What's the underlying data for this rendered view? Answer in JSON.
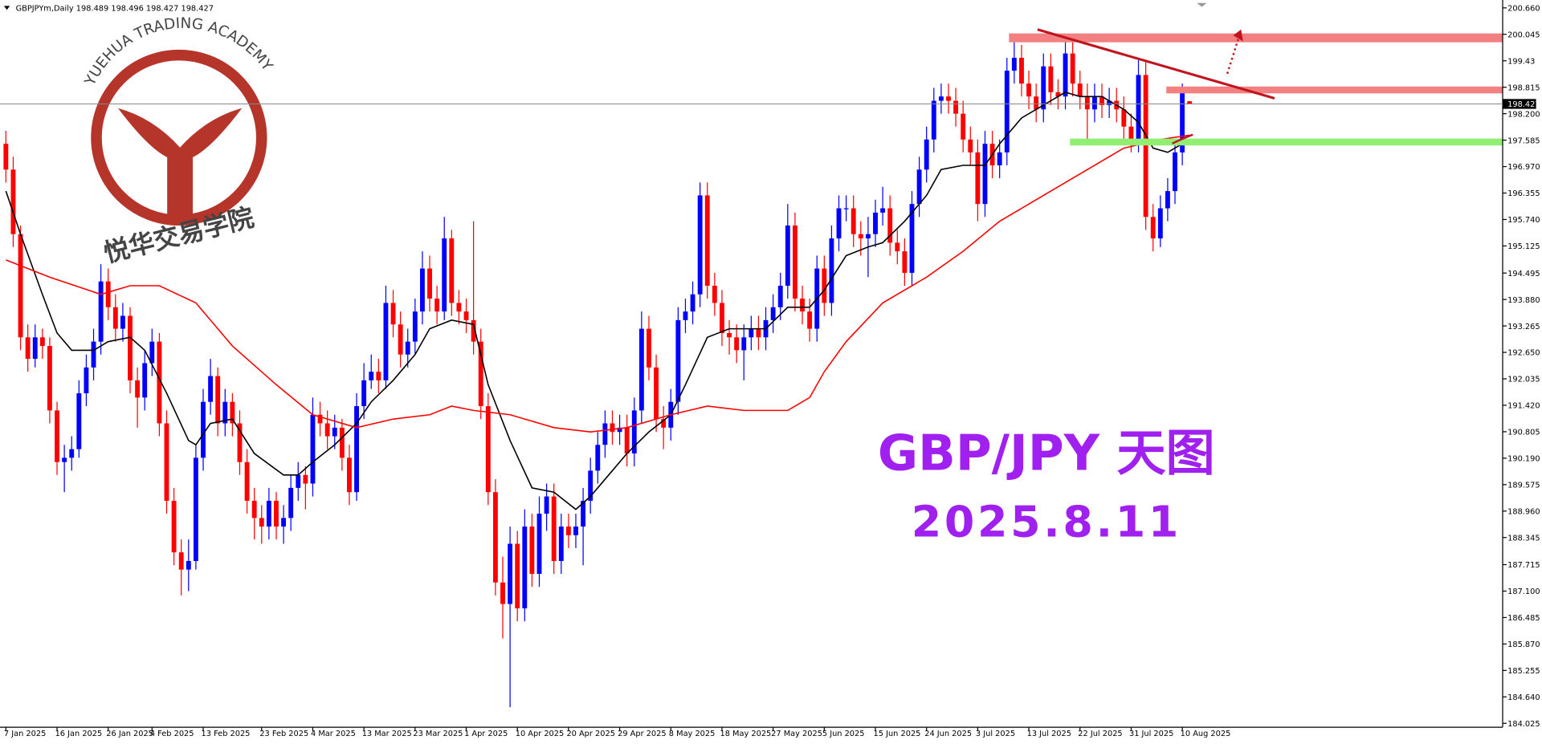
{
  "header": "GBPJPYm,Daily  198.489 198.496 198.427 198.427",
  "watermark": {
    "arc_text": "YUEHUA TRADING ACADEMY",
    "cn_text": "悦华交易学院"
  },
  "chart_data": {
    "type": "candlestick",
    "annotations": [
      "GBP/JPY 天图",
      "2025.8.11"
    ],
    "up_color": "#0000ff",
    "down_color": "#ff0000",
    "grid": false,
    "ylim": [
      184.025,
      200.66
    ],
    "yticks": [
      {
        "value": 200.66,
        "label": "200.660"
      },
      200.045,
      199.43,
      198.815,
      {
        "value": 198.2,
        "label": "198.200"
      },
      197.585,
      {
        "value": 196.97,
        "label": "196.970"
      },
      196.355,
      {
        "value": 195.74,
        "label": "195.740"
      },
      195.125,
      194.495,
      {
        "value": 193.88,
        "label": "193.880"
      },
      193.265,
      {
        "value": 192.65,
        "label": "192.650"
      },
      192.035,
      {
        "value": 191.42,
        "label": "191.420"
      },
      190.805,
      {
        "value": 190.19,
        "label": "190.190"
      },
      189.575,
      {
        "value": 188.96,
        "label": "188.960"
      },
      188.345,
      187.715,
      {
        "value": 187.1,
        "label": "187.100"
      },
      186.485,
      {
        "value": 185.87,
        "label": "185.870"
      },
      185.255,
      {
        "value": 184.64,
        "label": "184.640"
      },
      184.025
    ],
    "xticks": [
      {
        "value": 0,
        "label": "7 Jan 2025"
      },
      {
        "value": 7,
        "label": "16 Jan 2025"
      },
      {
        "value": 14,
        "label": "26 Jan 2025"
      },
      {
        "value": 20,
        "label": "4 Feb 2025"
      },
      {
        "value": 27,
        "label": "13 Feb 2025"
      },
      {
        "value": 35,
        "label": "23 Feb 2025"
      },
      {
        "value": 42,
        "label": "4 Mar 2025"
      },
      {
        "value": 49,
        "label": "13 Mar 2025"
      },
      {
        "value": 56,
        "label": "23 Mar 2025"
      },
      {
        "value": 63,
        "label": "1 Apr 2025"
      },
      {
        "value": 70,
        "label": "10 Apr 2025"
      },
      {
        "value": 77,
        "label": "20 Apr 2025"
      },
      {
        "value": 84,
        "label": "29 Apr 2025"
      },
      {
        "value": 91,
        "label": "8 May 2025"
      },
      {
        "value": 98,
        "label": "18 May 2025"
      },
      {
        "value": 105,
        "label": "27 May 2025"
      },
      {
        "value": 112,
        "label": "5 Jun 2025"
      },
      {
        "value": 119,
        "label": "15 Jun 2025"
      },
      {
        "value": 126,
        "label": "24 Jun 2025"
      },
      {
        "value": 133,
        "label": "3 Jul 2025"
      },
      {
        "value": 140,
        "label": "13 Jul 2025"
      },
      {
        "value": 147,
        "label": "22 Jul 2025"
      },
      {
        "value": 154,
        "label": "31 Jul 2025"
      },
      {
        "value": 161,
        "label": "10 Aug 2025"
      }
    ],
    "candles": [
      [
        197.5,
        197.8,
        196.6,
        196.9
      ],
      [
        196.9,
        197.2,
        195.1,
        195.4
      ],
      [
        195.4,
        195.6,
        192.7,
        193.0
      ],
      [
        193.0,
        193.3,
        192.2,
        192.5
      ],
      [
        192.5,
        193.3,
        192.3,
        193.0
      ],
      [
        193.0,
        193.2,
        192.5,
        192.8
      ],
      [
        192.8,
        193.0,
        191.0,
        191.3
      ],
      [
        191.3,
        191.5,
        189.8,
        190.1
      ],
      [
        190.1,
        190.5,
        189.4,
        190.2
      ],
      [
        190.2,
        190.7,
        189.9,
        190.4
      ],
      [
        190.4,
        192.0,
        190.2,
        191.7
      ],
      [
        191.7,
        192.6,
        191.4,
        192.3
      ],
      [
        192.3,
        193.2,
        192.0,
        192.9
      ],
      [
        192.9,
        194.7,
        192.6,
        194.3
      ],
      [
        194.3,
        194.6,
        193.4,
        193.7
      ],
      [
        193.7,
        194.0,
        192.9,
        193.2
      ],
      [
        193.2,
        193.8,
        192.9,
        193.5
      ],
      [
        193.5,
        193.7,
        191.7,
        192.0
      ],
      [
        192.0,
        192.3,
        190.9,
        191.6
      ],
      [
        191.6,
        192.7,
        191.3,
        192.4
      ],
      [
        192.4,
        193.2,
        192.1,
        192.9
      ],
      [
        192.9,
        193.1,
        190.7,
        191.0
      ],
      [
        191.0,
        191.3,
        188.9,
        189.2
      ],
      [
        189.2,
        189.5,
        187.7,
        188.0
      ],
      [
        188.0,
        188.3,
        187.0,
        187.6
      ],
      [
        187.6,
        188.3,
        187.1,
        187.8
      ],
      [
        187.8,
        190.5,
        187.6,
        190.2
      ],
      [
        190.2,
        191.8,
        189.9,
        191.5
      ],
      [
        191.5,
        192.5,
        191.2,
        192.1
      ],
      [
        192.1,
        192.3,
        190.7,
        191.0
      ],
      [
        191.0,
        191.8,
        190.7,
        191.5
      ],
      [
        191.5,
        191.7,
        190.7,
        191.0
      ],
      [
        191.0,
        191.3,
        189.8,
        190.1
      ],
      [
        190.1,
        190.4,
        188.9,
        189.2
      ],
      [
        189.2,
        189.5,
        188.3,
        188.8
      ],
      [
        188.8,
        189.1,
        188.2,
        188.6
      ],
      [
        188.6,
        189.5,
        188.3,
        189.2
      ],
      [
        189.2,
        189.4,
        188.3,
        188.6
      ],
      [
        188.6,
        189.1,
        188.2,
        188.8
      ],
      [
        188.8,
        189.8,
        188.5,
        189.5
      ],
      [
        189.5,
        190.1,
        189.2,
        189.8
      ],
      [
        189.8,
        190.0,
        189.0,
        189.6
      ],
      [
        189.6,
        191.6,
        189.3,
        191.2
      ],
      [
        191.2,
        191.5,
        190.7,
        191.0
      ],
      [
        191.0,
        191.3,
        190.4,
        190.7
      ],
      [
        190.7,
        191.2,
        190.4,
        190.9
      ],
      [
        190.9,
        191.1,
        189.9,
        190.2
      ],
      [
        190.2,
        190.5,
        189.1,
        189.4
      ],
      [
        189.4,
        191.7,
        189.2,
        191.4
      ],
      [
        191.4,
        192.4,
        191.1,
        192.0
      ],
      [
        192.0,
        192.6,
        191.8,
        192.2
      ],
      [
        192.2,
        192.5,
        191.7,
        192.0
      ],
      [
        192.0,
        194.2,
        191.8,
        193.8
      ],
      [
        193.8,
        194.1,
        193.0,
        193.3
      ],
      [
        193.3,
        193.6,
        192.3,
        192.6
      ],
      [
        192.6,
        193.2,
        192.3,
        192.9
      ],
      [
        192.9,
        193.9,
        192.6,
        193.6
      ],
      [
        193.6,
        195.0,
        193.3,
        194.6
      ],
      [
        194.6,
        194.9,
        193.6,
        193.9
      ],
      [
        193.9,
        194.2,
        193.3,
        193.6
      ],
      [
        193.6,
        195.8,
        193.4,
        195.3
      ],
      [
        195.3,
        195.5,
        193.5,
        193.8
      ],
      [
        193.8,
        194.1,
        193.3,
        193.6
      ],
      [
        193.6,
        193.9,
        193.1,
        193.4
      ],
      [
        193.4,
        195.7,
        192.6,
        192.9
      ],
      [
        192.9,
        193.2,
        191.1,
        191.4
      ],
      [
        191.4,
        191.7,
        189.1,
        189.4
      ],
      [
        189.4,
        189.7,
        187.0,
        187.3
      ],
      [
        187.3,
        187.9,
        186.0,
        186.8
      ],
      [
        186.8,
        188.6,
        184.4,
        188.2
      ],
      [
        188.2,
        188.5,
        186.4,
        186.7
      ],
      [
        186.7,
        189.0,
        186.4,
        188.6
      ],
      [
        188.6,
        188.9,
        187.2,
        187.5
      ],
      [
        187.5,
        189.3,
        187.2,
        188.9
      ],
      [
        188.9,
        189.6,
        188.5,
        189.3
      ],
      [
        189.3,
        189.6,
        187.5,
        187.8
      ],
      [
        187.8,
        188.9,
        187.5,
        188.6
      ],
      [
        188.6,
        188.9,
        188.1,
        188.4
      ],
      [
        188.4,
        188.9,
        188.1,
        188.6
      ],
      [
        188.6,
        189.5,
        187.7,
        189.2
      ],
      [
        189.2,
        190.2,
        188.9,
        189.9
      ],
      [
        189.9,
        190.8,
        189.6,
        190.5
      ],
      [
        190.5,
        191.3,
        190.2,
        191.0
      ],
      [
        191.0,
        191.3,
        190.5,
        190.8
      ],
      [
        190.8,
        191.2,
        190.5,
        190.9
      ],
      [
        190.9,
        191.2,
        190.0,
        190.3
      ],
      [
        190.3,
        191.6,
        190.0,
        191.3
      ],
      [
        191.3,
        193.6,
        191.0,
        193.2
      ],
      [
        193.2,
        193.5,
        192.0,
        192.3
      ],
      [
        192.3,
        192.6,
        190.8,
        191.1
      ],
      [
        191.1,
        191.4,
        190.4,
        190.9
      ],
      [
        190.9,
        191.8,
        190.6,
        191.5
      ],
      [
        191.5,
        193.7,
        191.2,
        193.4
      ],
      [
        193.4,
        193.9,
        193.1,
        193.6
      ],
      [
        193.6,
        194.3,
        193.3,
        194.0
      ],
      [
        194.0,
        196.6,
        193.7,
        196.3
      ],
      [
        196.3,
        196.6,
        193.9,
        194.2
      ],
      [
        194.2,
        194.5,
        193.5,
        193.8
      ],
      [
        193.8,
        194.1,
        192.8,
        193.1
      ],
      [
        193.1,
        193.4,
        192.6,
        193.0
      ],
      [
        193.0,
        193.3,
        192.4,
        192.7
      ],
      [
        192.7,
        193.3,
        192.0,
        193.0
      ],
      [
        193.0,
        193.5,
        192.7,
        193.2
      ],
      [
        193.2,
        193.5,
        192.7,
        193.0
      ],
      [
        193.0,
        193.7,
        192.7,
        193.4
      ],
      [
        193.4,
        194.0,
        193.1,
        193.7
      ],
      [
        193.7,
        194.5,
        193.4,
        194.2
      ],
      [
        194.2,
        196.1,
        193.9,
        195.6
      ],
      [
        195.6,
        195.9,
        193.6,
        193.9
      ],
      [
        193.9,
        194.2,
        193.3,
        193.6
      ],
      [
        193.6,
        193.9,
        192.9,
        193.2
      ],
      [
        193.2,
        194.9,
        192.9,
        194.6
      ],
      [
        194.6,
        194.9,
        193.5,
        193.8
      ],
      [
        193.8,
        195.6,
        193.5,
        195.3
      ],
      [
        195.3,
        196.3,
        195.0,
        196.0
      ],
      [
        196.0,
        196.3,
        195.7,
        196.0
      ],
      [
        196.0,
        196.3,
        195.1,
        195.4
      ],
      [
        195.4,
        195.7,
        194.9,
        195.3
      ],
      [
        195.3,
        195.8,
        194.4,
        195.4
      ],
      [
        195.4,
        196.2,
        195.1,
        195.9
      ],
      [
        195.9,
        196.5,
        195.6,
        196.0
      ],
      [
        196.0,
        196.3,
        194.9,
        195.2
      ],
      [
        195.2,
        195.5,
        194.7,
        195.0
      ],
      [
        195.0,
        195.3,
        194.2,
        194.5
      ],
      [
        194.5,
        196.4,
        194.2,
        196.1
      ],
      [
        196.1,
        197.2,
        195.8,
        196.9
      ],
      [
        196.9,
        197.9,
        196.6,
        197.6
      ],
      [
        197.6,
        198.8,
        197.3,
        198.5
      ],
      [
        198.5,
        198.9,
        198.2,
        198.6
      ],
      [
        198.6,
        198.9,
        198.2,
        198.5
      ],
      [
        198.5,
        198.8,
        197.9,
        198.2
      ],
      [
        198.2,
        198.5,
        197.3,
        197.6
      ],
      [
        197.6,
        197.9,
        197.0,
        197.3
      ],
      [
        197.3,
        197.6,
        195.7,
        196.1
      ],
      [
        196.1,
        197.8,
        195.8,
        197.5
      ],
      [
        197.5,
        197.8,
        196.7,
        197.0
      ],
      [
        197.0,
        197.6,
        196.7,
        197.3
      ],
      [
        197.3,
        199.5,
        197.0,
        199.2
      ],
      [
        199.2,
        199.9,
        198.9,
        199.5
      ],
      [
        199.5,
        199.8,
        198.6,
        198.9
      ],
      [
        198.9,
        199.2,
        198.3,
        198.6
      ],
      [
        198.6,
        198.9,
        198.0,
        198.3
      ],
      [
        198.3,
        199.6,
        198.0,
        199.3
      ],
      [
        199.3,
        199.6,
        198.4,
        198.7
      ],
      [
        198.7,
        199.0,
        198.3,
        198.6
      ],
      [
        198.6,
        200.0,
        198.3,
        199.6
      ],
      [
        199.6,
        199.9,
        198.6,
        198.9
      ],
      [
        198.9,
        199.2,
        198.3,
        198.6
      ],
      [
        198.6,
        198.9,
        197.5,
        198.3
      ],
      [
        198.3,
        198.9,
        198.0,
        198.6
      ],
      [
        198.6,
        198.9,
        198.1,
        198.4
      ],
      [
        198.4,
        198.8,
        198.1,
        198.5
      ],
      [
        198.5,
        198.8,
        198.0,
        198.3
      ],
      [
        198.3,
        198.6,
        197.6,
        197.9
      ],
      [
        197.9,
        198.2,
        197.3,
        197.6
      ],
      [
        197.6,
        199.5,
        197.3,
        199.1
      ],
      [
        199.1,
        199.4,
        195.5,
        195.8
      ],
      [
        195.8,
        196.1,
        195.0,
        195.3
      ],
      [
        195.3,
        196.3,
        195.1,
        196.0
      ],
      [
        196.0,
        196.7,
        195.7,
        196.4
      ],
      [
        196.4,
        197.6,
        196.1,
        197.3
      ],
      [
        197.3,
        198.9,
        197.0,
        198.7
      ],
      [
        198.489,
        198.496,
        198.427,
        198.427
      ]
    ],
    "lines": [
      {
        "color": "#000000",
        "x": [
          0,
          2,
          5,
          7,
          9,
          12,
          14,
          17,
          19,
          22,
          25,
          26,
          28,
          31,
          34,
          38,
          40,
          42,
          45,
          48,
          50,
          53,
          56,
          58,
          61,
          64,
          66,
          69,
          72,
          75,
          78,
          80,
          83,
          85,
          88,
          91,
          93,
          96,
          99,
          101,
          104,
          107,
          110,
          112,
          115,
          118,
          120,
          123,
          126,
          128,
          131,
          134,
          136,
          139,
          142,
          145,
          147,
          150,
          153,
          155,
          157,
          159,
          161,
          162
        ],
        "values": [
          196.4,
          195.4,
          194.0,
          193.1,
          192.7,
          192.7,
          192.9,
          193.0,
          192.7,
          191.7,
          190.6,
          190.5,
          191.0,
          191.1,
          190.3,
          189.8,
          189.8,
          190.1,
          190.5,
          191.0,
          191.5,
          192.0,
          192.6,
          193.2,
          193.4,
          193.3,
          191.9,
          190.6,
          189.5,
          189.4,
          189.0,
          189.3,
          189.9,
          190.3,
          190.8,
          191.2,
          191.9,
          193.0,
          193.2,
          193.2,
          193.2,
          193.7,
          193.7,
          194.1,
          194.9,
          195.1,
          195.2,
          195.7,
          196.3,
          196.9,
          197.0,
          197.0,
          197.5,
          198.1,
          198.4,
          198.7,
          198.6,
          198.6,
          198.3,
          198.0,
          197.4,
          197.3,
          197.5,
          197.6
        ]
      },
      {
        "color": "#ff0000",
        "x": [
          0,
          6,
          13,
          17,
          21,
          26,
          31,
          37,
          42,
          48,
          53,
          58,
          61,
          64,
          69,
          75,
          80,
          85,
          91,
          96,
          101,
          107,
          110,
          112,
          115,
          120,
          126,
          131,
          136,
          142,
          147,
          153,
          158,
          162
        ],
        "values": [
          194.8,
          194.4,
          194.0,
          194.2,
          194.2,
          193.8,
          192.8,
          191.9,
          191.2,
          190.9,
          191.1,
          191.2,
          191.4,
          191.3,
          191.2,
          190.9,
          190.8,
          190.9,
          191.2,
          191.4,
          191.3,
          191.3,
          191.6,
          192.2,
          192.9,
          193.8,
          194.4,
          195.0,
          195.7,
          196.3,
          196.8,
          197.4,
          197.6,
          197.7
        ]
      }
    ]
  }
}
